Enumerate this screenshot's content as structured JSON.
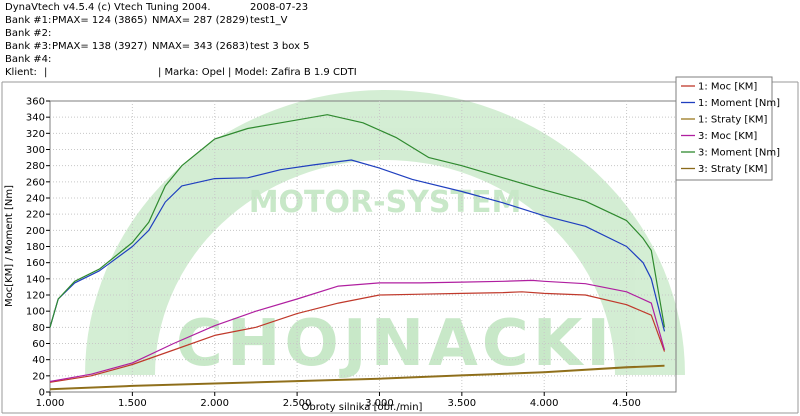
{
  "header": {
    "app_line": "DynaVtech v4.5.4 (c) Vtech Tuning 2004.",
    "date": "2008-07-23",
    "bank1_label": "Bank #1:",
    "bank1_pmax": "PMAX= 124 (3865)",
    "bank1_nmax": "NMAX= 287 (2829)",
    "bank1_name": "test1_V",
    "bank2_label": "Bank #2:",
    "bank3_label": "Bank #3:",
    "bank3_pmax": "PMAX= 138 (3927)",
    "bank3_nmax": "NMAX= 343 (2683)",
    "bank3_name": "test 3 box 5",
    "bank4_label": "Bank #4:",
    "klient_label": "Klient:",
    "klient_value": "|",
    "marka_model": "| Marka: Opel | Model: Zafira B 1.9 CDTI"
  },
  "watermark": {
    "main": "CHOJNACKI",
    "arc": "MOTOR-SYSTEM"
  },
  "chart_data": {
    "type": "line",
    "xlabel": "Obroty silnika [obr./min]",
    "ylabel": "Moc[KM] / Moment [Nm]",
    "xlim": [
      1000,
      4800
    ],
    "ylim": [
      0,
      360
    ],
    "xticks": [
      {
        "value": 1000,
        "label": "1.000"
      },
      {
        "value": 1500,
        "label": "1.500"
      },
      {
        "value": 2000,
        "label": "2.000"
      },
      {
        "value": 2500,
        "label": "2.500"
      },
      {
        "value": 3000,
        "label": "3.000"
      },
      {
        "value": 3500,
        "label": "3.500"
      },
      {
        "value": 4000,
        "label": "4.000"
      },
      {
        "value": 4500,
        "label": "4.500"
      }
    ],
    "yticks": [
      0,
      20,
      40,
      60,
      80,
      100,
      120,
      140,
      160,
      180,
      200,
      220,
      240,
      260,
      280,
      300,
      320,
      340,
      360
    ],
    "grid": true,
    "legend_position": "top-right",
    "series": [
      {
        "name": "1: Moc [KM]",
        "color": "#c0392b",
        "points": [
          [
            1000,
            12
          ],
          [
            1250,
            20
          ],
          [
            1500,
            34
          ],
          [
            1750,
            52
          ],
          [
            2000,
            70
          ],
          [
            2250,
            80
          ],
          [
            2500,
            97
          ],
          [
            2750,
            110
          ],
          [
            3000,
            120
          ],
          [
            3250,
            121
          ],
          [
            3500,
            122
          ],
          [
            3750,
            123
          ],
          [
            3865,
            124
          ],
          [
            4000,
            122
          ],
          [
            4250,
            120
          ],
          [
            4500,
            108
          ],
          [
            4650,
            95
          ],
          [
            4730,
            50
          ]
        ]
      },
      {
        "name": "1: Moment [Nm]",
        "color": "#1f3fbf",
        "points": [
          [
            1000,
            80
          ],
          [
            1050,
            115
          ],
          [
            1150,
            135
          ],
          [
            1300,
            150
          ],
          [
            1500,
            180
          ],
          [
            1600,
            200
          ],
          [
            1700,
            235
          ],
          [
            1800,
            255
          ],
          [
            2000,
            264
          ],
          [
            2200,
            265
          ],
          [
            2400,
            275
          ],
          [
            2600,
            281
          ],
          [
            2829,
            287
          ],
          [
            3000,
            277
          ],
          [
            3200,
            263
          ],
          [
            3500,
            248
          ],
          [
            3750,
            234
          ],
          [
            4000,
            218
          ],
          [
            4250,
            205
          ],
          [
            4500,
            180
          ],
          [
            4600,
            160
          ],
          [
            4650,
            140
          ],
          [
            4730,
            75
          ]
        ]
      },
      {
        "name": "1: Straty [KM]",
        "color": "#9a7a20",
        "points": [
          [
            1000,
            3
          ],
          [
            1500,
            7
          ],
          [
            2000,
            10
          ],
          [
            2500,
            13
          ],
          [
            3000,
            16
          ],
          [
            3500,
            20
          ],
          [
            4000,
            24
          ],
          [
            4500,
            30
          ],
          [
            4730,
            32
          ]
        ]
      },
      {
        "name": "3: Moc [KM]",
        "color": "#b01fa0",
        "points": [
          [
            1000,
            13
          ],
          [
            1250,
            22
          ],
          [
            1500,
            36
          ],
          [
            1750,
            60
          ],
          [
            2000,
            82
          ],
          [
            2250,
            100
          ],
          [
            2500,
            115
          ],
          [
            2750,
            131
          ],
          [
            3000,
            135
          ],
          [
            3250,
            135
          ],
          [
            3500,
            136
          ],
          [
            3750,
            137
          ],
          [
            3927,
            138
          ],
          [
            4000,
            137
          ],
          [
            4250,
            134
          ],
          [
            4500,
            124
          ],
          [
            4650,
            110
          ],
          [
            4730,
            52
          ]
        ]
      },
      {
        "name": "3: Moment [Nm]",
        "color": "#2f8a2f",
        "points": [
          [
            1000,
            80
          ],
          [
            1050,
            115
          ],
          [
            1150,
            137
          ],
          [
            1300,
            152
          ],
          [
            1500,
            185
          ],
          [
            1600,
            210
          ],
          [
            1700,
            255
          ],
          [
            1800,
            280
          ],
          [
            2000,
            313
          ],
          [
            2200,
            326
          ],
          [
            2400,
            333
          ],
          [
            2683,
            343
          ],
          [
            2900,
            333
          ],
          [
            3100,
            315
          ],
          [
            3300,
            290
          ],
          [
            3500,
            280
          ],
          [
            3750,
            265
          ],
          [
            4000,
            250
          ],
          [
            4250,
            236
          ],
          [
            4500,
            212
          ],
          [
            4600,
            190
          ],
          [
            4650,
            175
          ],
          [
            4730,
            80
          ]
        ]
      },
      {
        "name": "3: Straty [KM]",
        "color": "#8a6a1a",
        "points": [
          [
            1000,
            4
          ],
          [
            1500,
            8
          ],
          [
            2000,
            11
          ],
          [
            2500,
            14
          ],
          [
            3000,
            17
          ],
          [
            3500,
            21
          ],
          [
            4000,
            25
          ],
          [
            4500,
            31
          ],
          [
            4730,
            33
          ]
        ]
      }
    ]
  }
}
